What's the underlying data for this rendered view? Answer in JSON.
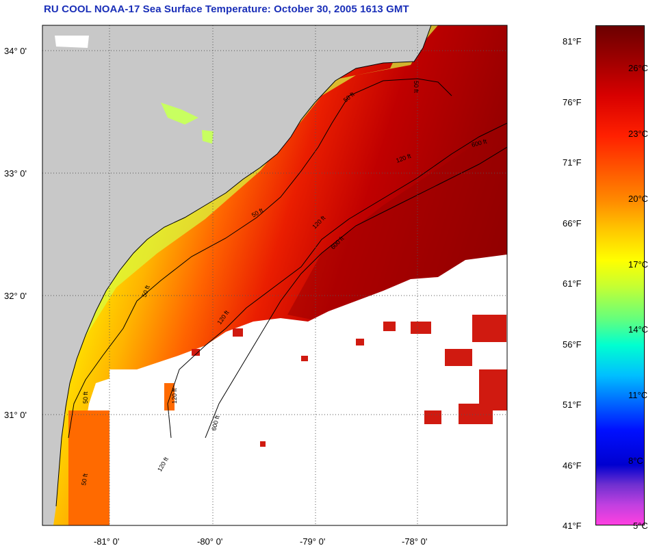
{
  "title": "RU COOL  NOAA-17  Sea Surface Temperature:  October 30, 2005 1613 GMT",
  "map": {
    "lat_labels": [
      "34° 0'",
      "33° 0'",
      "32° 0'",
      "31° 0'"
    ],
    "lon_labels": [
      "-81° 0'",
      "-80° 0'",
      "-79° 0'",
      "-78° 0'"
    ],
    "contour_labels": [
      "50 ft",
      "50 ft",
      "50 ft",
      "50 ft",
      "50 ft",
      "50 ft",
      "120 ft",
      "120 ft",
      "120 ft",
      "120 ft",
      "120 ft",
      "600 ft",
      "600 ft",
      "600 ft"
    ],
    "colors": {
      "land": "#c8c8c8",
      "cloud": "#ffffff",
      "frame": "#000000"
    }
  },
  "scale": {
    "fahrenheit": [
      "81°F",
      "76°F",
      "71°F",
      "66°F",
      "61°F",
      "56°F",
      "51°F",
      "46°F",
      "41°F"
    ],
    "celsius": [
      "26°C",
      "23°C",
      "20°C",
      "17°C",
      "14°C",
      "11°C",
      "8°C",
      "5°C"
    ]
  }
}
